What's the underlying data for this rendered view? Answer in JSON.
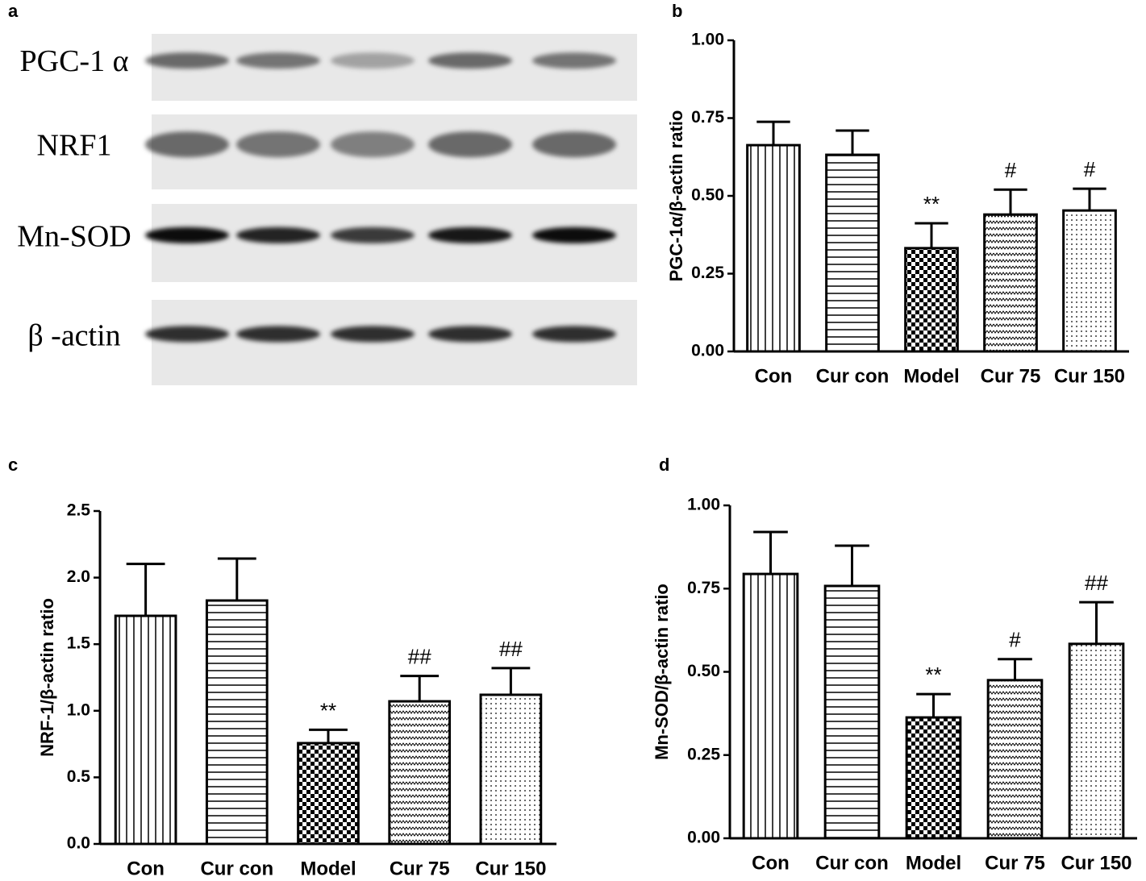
{
  "blot": {
    "label": "a",
    "rows": [
      "PGC-1 α",
      "NRF1",
      "Mn-SOD",
      "β -actin"
    ]
  },
  "chart_data": [
    {
      "type": "bar",
      "label": "b",
      "ylabel": "PGC-1α/β-actin ratio",
      "color": "#000000",
      "categories": [
        "Con",
        "Cur con",
        "Model",
        "Cur 75",
        "Cur 150"
      ],
      "values": [
        0.663,
        0.632,
        0.332,
        0.44,
        0.453
      ],
      "errors": [
        0.075,
        0.078,
        0.08,
        0.08,
        0.07
      ],
      "annotations": [
        null,
        null,
        "**",
        "#",
        "#"
      ],
      "patterns": [
        "vertical",
        "horizontal",
        "checker",
        "wave",
        "dots"
      ],
      "ylim": [
        0,
        1
      ],
      "yticks": [
        {
          "value": 0,
          "label": "0.00"
        },
        {
          "value": 0.25,
          "label": "0.25"
        },
        {
          "value": 0.5,
          "label": "0.50"
        },
        {
          "value": 0.75,
          "label": "0.75"
        },
        {
          "value": 1,
          "label": "1.00"
        }
      ]
    },
    {
      "type": "bar",
      "label": "c",
      "ylabel": "NRF-1/β-actin ratio",
      "color": "#000000",
      "categories": [
        "Con",
        "Cur con",
        "Model",
        "Cur 75",
        "Cur 150"
      ],
      "values": [
        1.713,
        1.828,
        0.757,
        1.071,
        1.12
      ],
      "errors": [
        0.39,
        0.315,
        0.1,
        0.19,
        0.2
      ],
      "annotations": [
        null,
        null,
        "**",
        "##",
        "##"
      ],
      "patterns": [
        "vertical",
        "horizontal",
        "checker",
        "wave",
        "dots"
      ],
      "ylim": [
        0,
        2.5
      ],
      "yticks": [
        {
          "value": 0,
          "label": "0.0"
        },
        0.5,
        {
          "value": 1,
          "label": "1.0"
        },
        1.5,
        {
          "value": 2,
          "label": "2.0"
        },
        2.5
      ]
    },
    {
      "type": "bar",
      "label": "d",
      "ylabel": "Mn-SOD/β-actin ratio",
      "color": "#000000",
      "categories": [
        "Con",
        "Cur con",
        "Model",
        "Cur 75",
        "Cur 150"
      ],
      "values": [
        0.794,
        0.758,
        0.363,
        0.475,
        0.584
      ],
      "errors": [
        0.126,
        0.121,
        0.07,
        0.063,
        0.125
      ],
      "annotations": [
        null,
        null,
        "**",
        "#",
        "##"
      ],
      "patterns": [
        "vertical",
        "horizontal",
        "checker",
        "wave",
        "dots"
      ],
      "ylim": [
        0,
        1
      ],
      "yticks": [
        {
          "value": 0,
          "label": "0.00"
        },
        {
          "value": 0.25,
          "label": "0.25"
        },
        {
          "value": 0.5,
          "label": "0.50"
        },
        {
          "value": 0.75,
          "label": "0.75"
        },
        {
          "value": 1,
          "label": "1.00"
        }
      ]
    }
  ]
}
